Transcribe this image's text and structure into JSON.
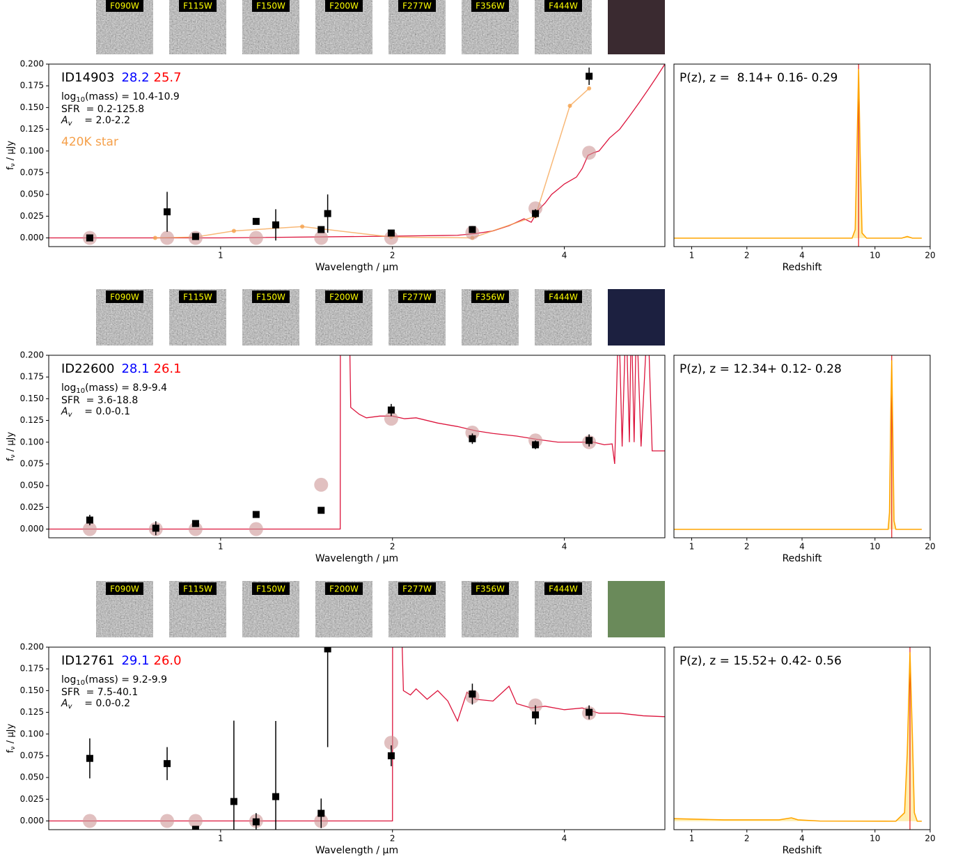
{
  "chart_data": [
    {
      "type": "sed",
      "filters": [
        "F090W",
        "F115W",
        "F150W",
        "F200W",
        "F277W",
        "F356W",
        "F444W"
      ],
      "object_id": "ID14903",
      "mag_blue": "28.2",
      "mag_red": "25.7",
      "mass_prefix": "log",
      "mass_subscript": "10",
      "mass_text": "(mass) = 10.4-10.9",
      "sfr_text": "SFR  = 0.2-125.8",
      "av_symbol": "A",
      "av_subscript": "v",
      "av_text": "    = 2.0-2.2",
      "star_label": "420K star",
      "star_color": "#f5a04a",
      "xlabel": "Wavelength / µm",
      "ylabel": {
        "main": "f",
        "sub": "ν",
        "rest": " / µJy"
      },
      "log_x": true,
      "xlim": [
        0.5,
        6.0
      ],
      "ylim": [
        -0.01,
        0.2
      ],
      "xticks": [
        1,
        2,
        4
      ],
      "yticks": [
        {
          "value": 0,
          "label": "0.000"
        },
        {
          "value": 0.025,
          "label": "0.025"
        },
        {
          "value": 0.05,
          "label": "0.050"
        },
        {
          "value": 0.075,
          "label": "0.075"
        },
        {
          "value": 0.1,
          "label": "0.100"
        },
        {
          "value": 0.125,
          "label": "0.125"
        },
        {
          "value": 0.15,
          "label": "0.150"
        },
        {
          "value": 0.175,
          "label": "0.175"
        },
        {
          "value": 0.2,
          "label": "0.200"
        }
      ],
      "spectrum": {
        "color": "#dc143c",
        "x": [
          0.5,
          1.0,
          2.0,
          2.6,
          2.8,
          3.0,
          3.2,
          3.4,
          3.5,
          3.6,
          3.7,
          3.8,
          3.9,
          4.0,
          4.2,
          4.3,
          4.4,
          4.5,
          4.6,
          4.8,
          5.0,
          5.2,
          5.4,
          5.6,
          5.8,
          6.0
        ],
        "values": [
          0,
          0,
          0.002,
          0.003,
          0.005,
          0.008,
          0.014,
          0.022,
          0.018,
          0.032,
          0.04,
          0.05,
          0.056,
          0.062,
          0.07,
          0.08,
          0.095,
          0.098,
          0.1,
          0.115,
          0.125,
          0.14,
          0.155,
          0.17,
          0.185,
          0.2
        ]
      },
      "star": {
        "x": [
          0.768,
          0.904,
          1.055,
          1.39,
          1.99,
          2.76,
          3.56,
          4.09,
          4.42
        ],
        "values": [
          0,
          0.001,
          0.008,
          0.013,
          0.001,
          0,
          0.025,
          0.152,
          0.172
        ]
      },
      "model_photometry": {
        "color": "#cd9696",
        "x": [
          0.59,
          0.806,
          0.904,
          1.154,
          1.5,
          1.99,
          2.76,
          3.56,
          4.42
        ],
        "values": [
          0,
          0,
          0,
          0,
          0,
          0,
          0.006,
          0.034,
          0.098
        ]
      },
      "observed": {
        "color": "#000000",
        "x": [
          0.59,
          0.806,
          0.904,
          1.154,
          1.249,
          1.5,
          1.54,
          1.99,
          2.76,
          3.56,
          4.42
        ],
        "values": [
          0.0,
          0.03,
          0.0016,
          0.019,
          0.015,
          0.0096,
          0.028,
          0.0056,
          0.0096,
          0.028,
          0.186
        ],
        "errors": [
          0.004,
          0.023,
          0.002,
          0.003,
          0.018,
          0.003,
          0.022,
          0.003,
          0.003,
          0.005,
          0.01
        ]
      }
    },
    {
      "type": "line",
      "title": "P(z), z =  8.14+ 0.16- 0.29",
      "xlabel": "Redshift",
      "log_x": true,
      "xlim": [
        0.8,
        20
      ],
      "ylim": [
        -0.05,
        1.03
      ],
      "xticks": [
        1,
        2,
        4,
        10,
        20
      ],
      "color": "#ffa500",
      "fill": "#ffe066",
      "z_marker": 8.14,
      "marker_color": "#e31a1c",
      "x": [
        0.8,
        2,
        5,
        7.5,
        7.8,
        8.0,
        8.14,
        8.3,
        8.5,
        9,
        12,
        14,
        15,
        16,
        18
      ],
      "values": [
        0,
        0,
        0,
        0,
        0.05,
        0.6,
        1,
        0.5,
        0.03,
        0,
        0,
        0,
        0.01,
        0,
        0
      ]
    },
    {
      "type": "sed",
      "filters": [
        "F090W",
        "F115W",
        "F150W",
        "F200W",
        "F277W",
        "F356W",
        "F444W"
      ],
      "object_id": "ID22600",
      "mag_blue": "28.1",
      "mag_red": "26.1",
      "mass_prefix": "log",
      "mass_subscript": "10",
      "mass_text": "(mass) = 8.9-9.4",
      "sfr_text": "SFR  = 3.6-18.8",
      "av_symbol": "A",
      "av_subscript": "v",
      "av_text": "    = 0.0-0.1",
      "xlabel": "Wavelength / µm",
      "ylabel": {
        "main": "f",
        "sub": "ν",
        "rest": " / µJy"
      },
      "log_x": true,
      "xlim": [
        0.5,
        6.0
      ],
      "ylim": [
        -0.01,
        0.2
      ],
      "xticks": [
        1,
        2,
        4
      ],
      "yticks": [
        {
          "value": 0,
          "label": "0.000"
        },
        {
          "value": 0.025,
          "label": "0.025"
        },
        {
          "value": 0.05,
          "label": "0.050"
        },
        {
          "value": 0.075,
          "label": "0.075"
        },
        {
          "value": 0.1,
          "label": "0.100"
        },
        {
          "value": 0.125,
          "label": "0.125"
        },
        {
          "value": 0.15,
          "label": "0.150"
        },
        {
          "value": 0.175,
          "label": "0.175"
        },
        {
          "value": 0.2,
          "label": "0.200"
        }
      ],
      "spectrum": {
        "color": "#dc143c",
        "x": [
          0.5,
          1.62,
          1.621,
          1.68,
          1.69,
          1.75,
          1.8,
          1.9,
          2.0,
          2.1,
          2.2,
          2.4,
          2.6,
          2.8,
          3.0,
          3.3,
          3.6,
          3.9,
          4.2,
          4.5,
          4.7,
          4.85,
          4.9,
          4.98,
          5.05,
          5.13,
          5.2,
          5.24,
          5.3,
          5.35,
          5.45,
          5.6,
          5.7,
          6.0
        ],
        "values": [
          0,
          0,
          0.25,
          0.25,
          0.14,
          0.132,
          0.128,
          0.13,
          0.13,
          0.127,
          0.128,
          0.122,
          0.118,
          0.113,
          0.11,
          0.107,
          0.103,
          0.1,
          0.1,
          0.1,
          0.097,
          0.098,
          0.075,
          0.25,
          0.095,
          0.25,
          0.1,
          0.25,
          0.1,
          0.25,
          0.095,
          0.25,
          0.09,
          0.09
        ]
      },
      "model_photometry": {
        "color": "#cd9696",
        "x": [
          0.59,
          0.77,
          0.904,
          1.154,
          1.5,
          1.99,
          2.76,
          3.56,
          4.42
        ],
        "values": [
          0,
          0,
          0,
          0,
          0.051,
          0.127,
          0.111,
          0.102,
          0.1
        ]
      },
      "observed": {
        "color": "#000000",
        "x": [
          0.59,
          0.77,
          0.904,
          1.154,
          1.5,
          1.99,
          2.76,
          3.56,
          4.42
        ],
        "values": [
          0.0104,
          0.001,
          0.0064,
          0.0168,
          0.0216,
          0.137,
          0.104,
          0.097,
          0.102
        ],
        "errors": [
          0.006,
          0.008,
          0.002,
          0.002,
          0.002,
          0.007,
          0.006,
          0.005,
          0.007
        ]
      }
    },
    {
      "type": "line",
      "title": "P(z), z = 12.34+ 0.12- 0.28",
      "xlabel": "Redshift",
      "log_x": true,
      "xlim": [
        0.8,
        20
      ],
      "ylim": [
        -0.05,
        1.03
      ],
      "xticks": [
        1,
        2,
        4,
        10,
        20
      ],
      "color": "#ffa500",
      "fill": "#ffe066",
      "z_marker": 12.34,
      "marker_color": "#e31a1c",
      "x": [
        0.8,
        5,
        11.8,
        12.0,
        12.2,
        12.34,
        12.5,
        12.7,
        13,
        18
      ],
      "values": [
        0,
        0,
        0,
        0.1,
        0.7,
        1,
        0.6,
        0.05,
        0,
        0
      ]
    },
    {
      "type": "sed",
      "filters": [
        "F090W",
        "F115W",
        "F150W",
        "F200W",
        "F277W",
        "F356W",
        "F444W"
      ],
      "object_id": "ID12761",
      "mag_blue": "29.1",
      "mag_red": "26.0",
      "mass_prefix": "log",
      "mass_subscript": "10",
      "mass_text": "(mass) = 9.2-9.9",
      "sfr_text": "SFR  = 7.5-40.1",
      "av_symbol": "A",
      "av_subscript": "v",
      "av_text": "    = 0.0-0.2",
      "xlabel": "Wavelength / µm",
      "ylabel": {
        "main": "f",
        "sub": "ν",
        "rest": " / µJy"
      },
      "log_x": true,
      "xlim": [
        0.5,
        6.0
      ],
      "ylim": [
        -0.01,
        0.2
      ],
      "xticks": [
        1,
        2,
        4
      ],
      "yticks": [
        {
          "value": 0,
          "label": "0.000"
        },
        {
          "value": 0.025,
          "label": "0.025"
        },
        {
          "value": 0.05,
          "label": "0.050"
        },
        {
          "value": 0.075,
          "label": "0.075"
        },
        {
          "value": 0.1,
          "label": "0.100"
        },
        {
          "value": 0.125,
          "label": "0.125"
        },
        {
          "value": 0.15,
          "label": "0.150"
        },
        {
          "value": 0.175,
          "label": "0.175"
        },
        {
          "value": 0.2,
          "label": "0.200"
        }
      ],
      "spectrum": {
        "color": "#dc143c",
        "x": [
          0.5,
          2.0,
          2.001,
          2.07,
          2.09,
          2.15,
          2.2,
          2.3,
          2.4,
          2.5,
          2.6,
          2.7,
          2.8,
          3.0,
          3.2,
          3.3,
          3.5,
          3.7,
          4.0,
          4.3,
          4.6,
          5.0,
          5.5,
          6.0
        ],
        "values": [
          0,
          0,
          0.25,
          0.25,
          0.15,
          0.145,
          0.152,
          0.14,
          0.15,
          0.138,
          0.115,
          0.148,
          0.14,
          0.138,
          0.155,
          0.135,
          0.13,
          0.132,
          0.128,
          0.13,
          0.124,
          0.124,
          0.121,
          0.12
        ]
      },
      "model_photometry": {
        "color": "#cd9696",
        "x": [
          0.59,
          0.806,
          0.904,
          1.154,
          1.5,
          1.99,
          2.76,
          3.56,
          4.42
        ],
        "values": [
          0,
          0,
          0,
          0,
          0,
          0.09,
          0.143,
          0.133,
          0.124
        ]
      },
      "observed": {
        "color": "#000000",
        "x": [
          0.59,
          0.806,
          0.904,
          1.055,
          1.154,
          1.249,
          1.5,
          1.54,
          1.99,
          2.76,
          3.56,
          4.42
        ],
        "values": [
          0.072,
          0.066,
          -0.0096,
          0.0224,
          -0.001,
          0.028,
          0.0088,
          0.198,
          0.075,
          0.146,
          0.122,
          0.125
        ],
        "errors": [
          0.023,
          0.019,
          0.002,
          0.093,
          0.01,
          0.087,
          0.017,
          0.113,
          0.012,
          0.012,
          0.011,
          0.008
        ]
      }
    },
    {
      "type": "line",
      "title": "P(z), z = 15.52+ 0.42- 0.56",
      "xlabel": "Redshift",
      "log_x": true,
      "xlim": [
        0.8,
        20
      ],
      "ylim": [
        -0.05,
        1.03
      ],
      "xticks": [
        1,
        2,
        4,
        10,
        20
      ],
      "color": "#ffa500",
      "fill": "#ffe066",
      "z_marker": 15.52,
      "marker_color": "#e31a1c",
      "x": [
        0.8,
        1.5,
        3,
        3.5,
        3.8,
        5,
        13,
        14.5,
        15,
        15.52,
        16,
        16.4,
        17,
        18
      ],
      "values": [
        0.015,
        0.008,
        0.008,
        0.02,
        0.008,
        0.001,
        0,
        0.05,
        0.4,
        1,
        0.5,
        0.05,
        0,
        0
      ]
    }
  ]
}
